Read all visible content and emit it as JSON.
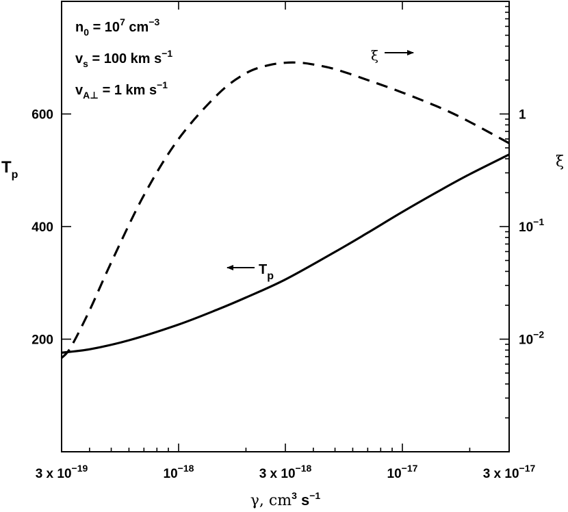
{
  "chart_data": {
    "type": "line",
    "title": "",
    "xlabel": {
      "prefix": "γ, cm",
      "sup1": "3",
      "mid": " s",
      "sup2": "−1"
    },
    "x_scale": "log",
    "xlim": [
      3e-19,
      3e-17
    ],
    "x_ticks": [
      {
        "value": 3e-19,
        "mant": "3 x 10",
        "exp": "−19"
      },
      {
        "value": 1e-18,
        "mant": "10",
        "exp": "−18"
      },
      {
        "value": 3e-18,
        "mant": "3 x 10",
        "exp": "−18"
      },
      {
        "value": 1e-17,
        "mant": "10",
        "exp": "−17"
      },
      {
        "value": 3e-17,
        "mant": "3 x 10",
        "exp": "−17"
      }
    ],
    "y_left": {
      "label": "T",
      "label_sub": "p",
      "scale": "linear",
      "lim": [
        0,
        800
      ],
      "ticks": [
        {
          "value": 200,
          "label": "200"
        },
        {
          "value": 400,
          "label": "400"
        },
        {
          "value": 600,
          "label": "600"
        }
      ]
    },
    "y_right": {
      "label": "ξ",
      "scale": "log",
      "lim": [
        0.001,
        10
      ],
      "ticks": [
        {
          "value": 0.01,
          "mant": "10",
          "exp": "−2"
        },
        {
          "value": 0.1,
          "mant": "10",
          "exp": "−1"
        },
        {
          "value": 1,
          "mant": "1",
          "exp": ""
        }
      ]
    },
    "series": [
      {
        "name": "T",
        "name_sub": "p",
        "axis": "left",
        "style": "solid",
        "color": "#000000",
        "x": [
          3e-19,
          4e-19,
          6e-19,
          1e-18,
          1.5e-18,
          2e-18,
          3e-18,
          5e-18,
          7e-18,
          1e-17,
          1.5e-17,
          2e-17,
          3e-17
        ],
        "y": [
          176,
          182,
          198,
          226,
          253,
          274,
          306,
          355,
          389,
          426,
          466,
          493,
          528
        ]
      },
      {
        "name": "ξ",
        "axis": "right",
        "style": "dashed",
        "color": "#000000",
        "x": [
          3e-19,
          3.3e-19,
          4e-19,
          5e-19,
          7e-19,
          1e-18,
          1.5e-18,
          2e-18,
          2.5e-18,
          3e-18,
          3.5e-18,
          4e-18,
          5e-18,
          7e-18,
          1e-17,
          1.5e-17,
          2e-17,
          3e-17
        ],
        "y": [
          0.0068,
          0.0085,
          0.018,
          0.048,
          0.19,
          0.6,
          1.5,
          2.3,
          2.7,
          2.85,
          2.85,
          2.75,
          2.5,
          2.0,
          1.55,
          1.12,
          0.85,
          0.55
        ]
      }
    ],
    "annotations": {
      "params": [
        {
          "base": "n",
          "sub": "0",
          "text": " = 10",
          "sup": "7",
          "text2": " cm",
          "sup2": "−3"
        },
        {
          "base": "v",
          "sub": "s",
          "text": " = 100 km s",
          "sup": "−1"
        },
        {
          "base": "v",
          "sub": "A⊥",
          "text": " = 1 km s",
          "sup": "−1"
        }
      ],
      "tp_arrow_label": "T",
      "tp_arrow_sub": "p",
      "xi_arrow_label": "ξ"
    },
    "grid": false,
    "legend": "none"
  }
}
